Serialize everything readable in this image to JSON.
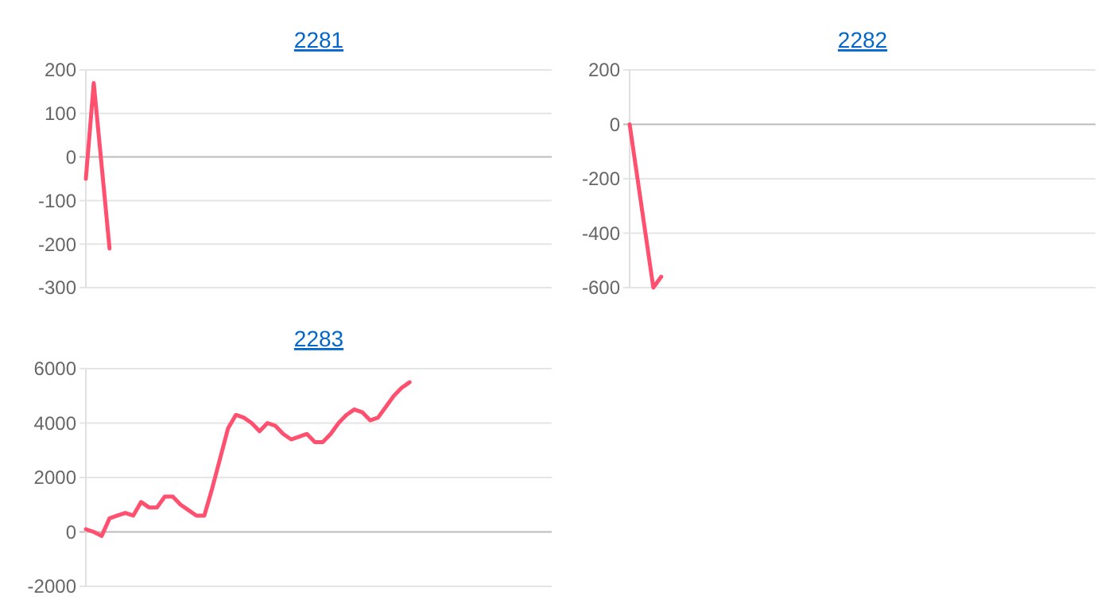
{
  "chart_data": [
    {
      "type": "line",
      "title": "2281",
      "categories": [
        null,
        null,
        null,
        null,
        null,
        null,
        null,
        null,
        null,
        null,
        null,
        null,
        null,
        null,
        null,
        null,
        null,
        null,
        null,
        null,
        null,
        null,
        null,
        null,
        null,
        null,
        null,
        null,
        null,
        null,
        null,
        null,
        null,
        null,
        null,
        null,
        null,
        null,
        null,
        null,
        null,
        null,
        null,
        null,
        null,
        null,
        null,
        null,
        null,
        null,
        null,
        null,
        null,
        null,
        null,
        null,
        null,
        null,
        null,
        null
      ],
      "series": [
        {
          "color": "#ff5070",
          "values": [
            -50,
            170,
            -20,
            -210,
            null,
            null,
            null,
            null,
            null,
            null,
            null,
            null,
            null,
            null,
            null,
            null,
            null,
            null,
            null,
            null,
            null,
            null,
            null,
            null,
            null,
            null,
            null,
            null,
            null,
            null,
            null,
            null,
            null,
            null,
            null,
            null,
            null,
            null,
            null,
            null,
            null,
            null,
            null,
            null,
            null,
            null,
            null,
            null,
            null,
            null,
            null,
            null,
            null,
            null,
            null,
            null,
            null,
            null,
            null,
            null
          ]
        }
      ],
      "ylim": [
        -300,
        200
      ],
      "yticks": [
        -300,
        -200,
        -100,
        0,
        100,
        200
      ],
      "grid": "y",
      "tick_labels": "y",
      "marker": "none"
    },
    {
      "type": "line",
      "title": "2282",
      "categories": [
        null,
        null,
        null,
        null,
        null,
        null,
        null,
        null,
        null,
        null,
        null,
        null,
        null,
        null,
        null,
        null,
        null,
        null,
        null,
        null,
        null,
        null,
        null,
        null,
        null,
        null,
        null,
        null,
        null,
        null,
        null,
        null,
        null,
        null,
        null,
        null,
        null,
        null,
        null,
        null,
        null,
        null,
        null,
        null,
        null,
        null,
        null,
        null,
        null,
        null,
        null,
        null,
        null,
        null,
        null,
        null,
        null,
        null,
        null,
        null
      ],
      "series": [
        {
          "color": "#ff5070",
          "values": [
            0,
            -200,
            -400,
            -600,
            -560,
            null,
            null,
            null,
            null,
            null,
            null,
            null,
            null,
            null,
            null,
            null,
            null,
            null,
            null,
            null,
            null,
            null,
            null,
            null,
            null,
            null,
            null,
            null,
            null,
            null,
            null,
            null,
            null,
            null,
            null,
            null,
            null,
            null,
            null,
            null,
            null,
            null,
            null,
            null,
            null,
            null,
            null,
            null,
            null,
            null,
            null,
            null,
            null,
            null,
            null,
            null,
            null,
            null,
            null,
            null
          ]
        }
      ],
      "ylim": [
        -600,
        200
      ],
      "yticks": [
        -600,
        -400,
        -200,
        0,
        200
      ],
      "grid": "y",
      "tick_labels": "y",
      "marker": "none"
    },
    {
      "type": "line",
      "title": "2283",
      "categories": [
        null,
        null,
        null,
        null,
        null,
        null,
        null,
        null,
        null,
        null,
        null,
        null,
        null,
        null,
        null,
        null,
        null,
        null,
        null,
        null,
        null,
        null,
        null,
        null,
        null,
        null,
        null,
        null,
        null,
        null,
        null,
        null,
        null,
        null,
        null,
        null,
        null,
        null,
        null,
        null,
        null,
        null,
        null,
        null,
        null,
        null,
        null,
        null,
        null,
        null,
        null,
        null,
        null,
        null,
        null,
        null,
        null,
        null,
        null,
        null
      ],
      "series": [
        {
          "color": "#ff5070",
          "values": [
            100,
            0,
            -150,
            500,
            600,
            700,
            600,
            1100,
            900,
            900,
            1300,
            1300,
            1000,
            800,
            600,
            600,
            1600,
            2700,
            3800,
            4300,
            4200,
            4000,
            3700,
            4000,
            3900,
            3600,
            3400,
            3500,
            3600,
            3300,
            3300,
            3600,
            4000,
            4300,
            4500,
            4400,
            4100,
            4200,
            4600,
            5000,
            5300,
            5500,
            null,
            null,
            null,
            null,
            null,
            null,
            null,
            null,
            null,
            null,
            null,
            null,
            null,
            null,
            null,
            null,
            null,
            null
          ]
        }
      ],
      "ylim": [
        -2000,
        6000
      ],
      "yticks": [
        -2000,
        0,
        2000,
        4000,
        6000
      ],
      "grid": "y",
      "tick_labels": "y",
      "marker": "none"
    }
  ]
}
